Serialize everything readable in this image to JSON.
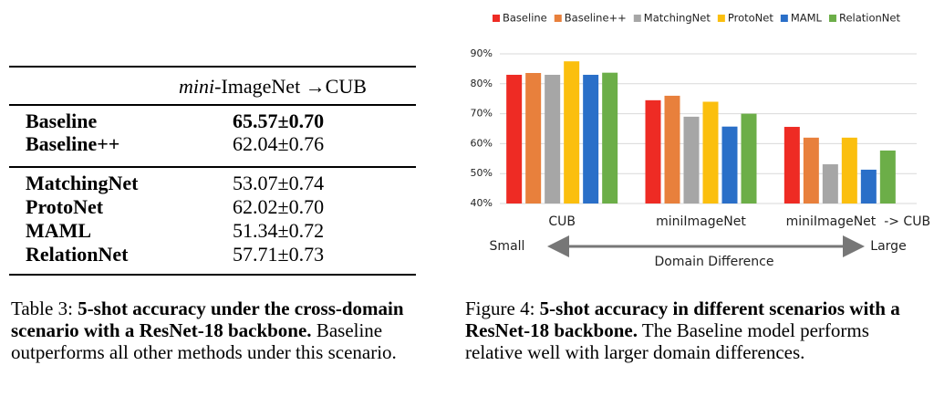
{
  "table": {
    "header": {
      "italic": "mini",
      "rest": "-ImageNet →CUB"
    },
    "groups": [
      [
        [
          "Baseline",
          "65.57±0.70"
        ],
        [
          "Baseline++",
          "62.04±0.76"
        ]
      ],
      [
        [
          "MatchingNet",
          "53.07±0.74"
        ],
        [
          "ProtoNet",
          "62.02±0.70"
        ],
        [
          "MAML",
          "51.34±0.72"
        ],
        [
          "RelationNet",
          "57.71±0.73"
        ]
      ]
    ],
    "caption": {
      "label": "Table 3:",
      "bold": "5-shot accuracy under the cross-domain scenario with a ResNet-18 backbone.",
      "rest": "Baseline outperforms all other methods under this scenario."
    }
  },
  "chart_data": {
    "type": "bar",
    "categories": [
      "CUB",
      "miniImageNet",
      "miniImageNet  -> CUB"
    ],
    "series": [
      {
        "name": "Baseline",
        "color": "#ee2b24",
        "values": [
          83,
          74.5,
          65.6
        ]
      },
      {
        "name": "Baseline++",
        "color": "#e8803c",
        "values": [
          83.6,
          76,
          62
        ]
      },
      {
        "name": "MatchingNet",
        "color": "#a6a6a6",
        "values": [
          83,
          69,
          53.1
        ]
      },
      {
        "name": "ProtoNet",
        "color": "#fbbf0e",
        "values": [
          87.5,
          74,
          62
        ]
      },
      {
        "name": "MAML",
        "color": "#2a6fc8",
        "values": [
          83,
          65.7,
          51.3
        ]
      },
      {
        "name": "RelationNet",
        "color": "#6cae48",
        "values": [
          83.7,
          70,
          57.7
        ]
      }
    ],
    "ylim": [
      40,
      90
    ],
    "yticks": [
      {
        "value": 40,
        "label": "40%"
      },
      {
        "value": 50,
        "label": "50%"
      },
      {
        "value": 60,
        "label": "60%"
      },
      {
        "value": 70,
        "label": "70%"
      },
      {
        "value": 80,
        "label": "80%"
      },
      {
        "value": 90,
        "label": "90%"
      }
    ],
    "grid": true,
    "annotations": {
      "left": "Small",
      "right": "Large",
      "axis": "Domain Difference"
    }
  },
  "figure_caption": {
    "label": "Figure 4:",
    "bold": "5-shot accuracy in different scenarios with a ResNet-18 backbone.",
    "rest": "The Baseline model performs relative well with larger domain differences."
  }
}
